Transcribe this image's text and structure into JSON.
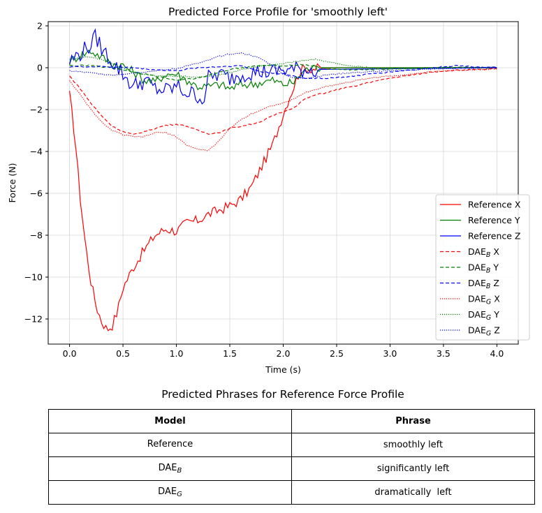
{
  "chart_data": {
    "type": "line",
    "title": "Predicted Force Profile for 'smoothly left'",
    "xlabel": "Time (s)",
    "ylabel": "Force (N)",
    "xlim": [
      -0.2,
      4.2
    ],
    "ylim": [
      -13.2,
      2.2
    ],
    "xticks": [
      0.0,
      0.5,
      1.0,
      1.5,
      2.0,
      2.5,
      3.0,
      3.5,
      4.0
    ],
    "xtick_labels": [
      "0.0",
      "0.5",
      "1.0",
      "1.5",
      "2.0",
      "2.5",
      "3.0",
      "3.5",
      "4.0"
    ],
    "yticks": [
      -12,
      -10,
      -8,
      -6,
      -4,
      -2,
      0,
      2
    ],
    "ytick_labels": [
      "−12",
      "−10",
      "−8",
      "−6",
      "−4",
      "−2",
      "0",
      "2"
    ],
    "grid": true,
    "legend_position": "lower-right",
    "series": [
      {
        "name": "Reference X",
        "color": "#ff0000",
        "style": "solid",
        "noise": 0.25,
        "points": [
          [
            0.0,
            -1.3
          ],
          [
            0.05,
            -3.3
          ],
          [
            0.1,
            -6.2
          ],
          [
            0.15,
            -8.5
          ],
          [
            0.2,
            -10.2
          ],
          [
            0.25,
            -11.4
          ],
          [
            0.3,
            -12.1
          ],
          [
            0.35,
            -12.5
          ],
          [
            0.4,
            -12.3
          ],
          [
            0.45,
            -11.6
          ],
          [
            0.5,
            -10.5
          ],
          [
            0.6,
            -9.5
          ],
          [
            0.7,
            -8.7
          ],
          [
            0.8,
            -8.0
          ],
          [
            0.9,
            -7.7
          ],
          [
            1.0,
            -7.8
          ],
          [
            1.1,
            -7.4
          ],
          [
            1.2,
            -7.3
          ],
          [
            1.3,
            -7.0
          ],
          [
            1.4,
            -6.8
          ],
          [
            1.5,
            -6.6
          ],
          [
            1.6,
            -6.3
          ],
          [
            1.7,
            -5.7
          ],
          [
            1.8,
            -4.7
          ],
          [
            1.9,
            -3.7
          ],
          [
            2.0,
            -2.2
          ],
          [
            2.05,
            -1.5
          ],
          [
            2.1,
            -0.9
          ],
          [
            2.15,
            -0.2
          ],
          [
            2.2,
            0.0
          ],
          [
            2.3,
            -0.05
          ],
          [
            2.5,
            0.0
          ],
          [
            4.0,
            0.0
          ]
        ]
      },
      {
        "name": "Reference Y",
        "color": "#008000",
        "style": "solid",
        "noise": 0.22,
        "points": [
          [
            0.0,
            0.3
          ],
          [
            0.1,
            0.6
          ],
          [
            0.2,
            0.8
          ],
          [
            0.3,
            0.5
          ],
          [
            0.4,
            0.2
          ],
          [
            0.5,
            0.1
          ],
          [
            0.6,
            -0.2
          ],
          [
            0.7,
            -0.6
          ],
          [
            0.8,
            -0.7
          ],
          [
            0.9,
            -0.3
          ],
          [
            1.0,
            -0.3
          ],
          [
            1.1,
            -0.6
          ],
          [
            1.2,
            -0.9
          ],
          [
            1.3,
            -0.9
          ],
          [
            1.4,
            -0.8
          ],
          [
            1.5,
            -1.0
          ],
          [
            1.6,
            -0.8
          ],
          [
            1.7,
            -0.8
          ],
          [
            1.8,
            -0.7
          ],
          [
            1.9,
            -0.6
          ],
          [
            2.0,
            -0.8
          ],
          [
            2.1,
            -0.7
          ],
          [
            2.2,
            -0.1
          ],
          [
            2.3,
            0.0
          ],
          [
            4.0,
            0.0
          ]
        ]
      },
      {
        "name": "Reference Z",
        "color": "#0000ff",
        "style": "solid",
        "noise": 0.42,
        "points": [
          [
            0.0,
            0.3
          ],
          [
            0.1,
            0.7
          ],
          [
            0.2,
            1.1
          ],
          [
            0.25,
            1.5
          ],
          [
            0.3,
            0.9
          ],
          [
            0.4,
            0.3
          ],
          [
            0.5,
            -0.3
          ],
          [
            0.6,
            -0.9
          ],
          [
            0.7,
            -0.6
          ],
          [
            0.8,
            -1.0
          ],
          [
            0.9,
            -1.1
          ],
          [
            1.0,
            -0.9
          ],
          [
            1.1,
            -1.2
          ],
          [
            1.2,
            -1.3
          ],
          [
            1.25,
            -1.6
          ],
          [
            1.3,
            -0.5
          ],
          [
            1.4,
            -0.3
          ],
          [
            1.5,
            -0.5
          ],
          [
            1.6,
            -0.3
          ],
          [
            1.7,
            -0.2
          ],
          [
            1.8,
            -0.2
          ],
          [
            1.9,
            -0.2
          ],
          [
            2.0,
            -0.1
          ],
          [
            4.0,
            0.0
          ]
        ]
      },
      {
        "name": "DAE_B X",
        "color": "#ff0000",
        "style": "dashed",
        "noise": 0.03,
        "points": [
          [
            0.0,
            -0.4
          ],
          [
            0.1,
            -1.0
          ],
          [
            0.2,
            -1.7
          ],
          [
            0.3,
            -2.3
          ],
          [
            0.4,
            -2.8
          ],
          [
            0.5,
            -3.05
          ],
          [
            0.6,
            -3.2
          ],
          [
            0.7,
            -3.05
          ],
          [
            0.8,
            -2.9
          ],
          [
            0.9,
            -2.75
          ],
          [
            1.0,
            -2.7
          ],
          [
            1.1,
            -2.8
          ],
          [
            1.2,
            -3.0
          ],
          [
            1.3,
            -3.15
          ],
          [
            1.4,
            -3.1
          ],
          [
            1.5,
            -2.9
          ],
          [
            1.6,
            -2.8
          ],
          [
            1.7,
            -2.7
          ],
          [
            1.8,
            -2.55
          ],
          [
            1.9,
            -2.3
          ],
          [
            2.0,
            -2.1
          ],
          [
            2.1,
            -1.9
          ],
          [
            2.2,
            -1.5
          ],
          [
            2.3,
            -1.3
          ],
          [
            2.4,
            -1.2
          ],
          [
            2.5,
            -1.05
          ],
          [
            2.6,
            -0.95
          ],
          [
            2.7,
            -0.85
          ],
          [
            2.8,
            -0.7
          ],
          [
            3.0,
            -0.5
          ],
          [
            3.2,
            -0.35
          ],
          [
            3.4,
            -0.2
          ],
          [
            3.6,
            -0.12
          ],
          [
            3.8,
            -0.1
          ],
          [
            4.0,
            -0.05
          ]
        ]
      },
      {
        "name": "DAE_B Y",
        "color": "#008000",
        "style": "dashed",
        "noise": 0.03,
        "points": [
          [
            0.0,
            0.1
          ],
          [
            0.2,
            0.1
          ],
          [
            0.4,
            0.0
          ],
          [
            0.6,
            -0.2
          ],
          [
            0.8,
            -0.4
          ],
          [
            1.0,
            -0.6
          ],
          [
            1.2,
            -0.5
          ],
          [
            1.4,
            -0.2
          ],
          [
            1.6,
            0.0
          ],
          [
            1.8,
            0.1
          ],
          [
            2.0,
            0.1
          ],
          [
            2.2,
            0.15
          ],
          [
            2.4,
            -0.05
          ],
          [
            2.6,
            -0.1
          ],
          [
            2.8,
            -0.1
          ],
          [
            3.0,
            -0.05
          ],
          [
            3.5,
            0.0
          ],
          [
            4.0,
            0.0
          ]
        ]
      },
      {
        "name": "DAE_B Z",
        "color": "#0000ff",
        "style": "dashed",
        "noise": 0.03,
        "points": [
          [
            0.0,
            0.05
          ],
          [
            0.3,
            0.05
          ],
          [
            0.6,
            0.0
          ],
          [
            0.8,
            -0.1
          ],
          [
            1.0,
            -0.15
          ],
          [
            1.2,
            0.0
          ],
          [
            1.4,
            0.05
          ],
          [
            1.6,
            0.1
          ],
          [
            1.8,
            -0.2
          ],
          [
            2.0,
            -0.3
          ],
          [
            2.2,
            -0.5
          ],
          [
            2.4,
            -0.5
          ],
          [
            2.6,
            -0.45
          ],
          [
            2.8,
            -0.3
          ],
          [
            3.0,
            -0.2
          ],
          [
            3.3,
            -0.05
          ],
          [
            3.6,
            0.1
          ],
          [
            3.8,
            0.05
          ],
          [
            4.0,
            0.0
          ]
        ]
      },
      {
        "name": "DAE_G X",
        "color": "#ff0000",
        "style": "dotted",
        "noise": 0.03,
        "points": [
          [
            0.0,
            -0.6
          ],
          [
            0.1,
            -1.3
          ],
          [
            0.2,
            -2.0
          ],
          [
            0.3,
            -2.6
          ],
          [
            0.4,
            -3.0
          ],
          [
            0.5,
            -3.2
          ],
          [
            0.6,
            -3.3
          ],
          [
            0.7,
            -3.3
          ],
          [
            0.8,
            -3.1
          ],
          [
            0.9,
            -3.1
          ],
          [
            1.0,
            -3.3
          ],
          [
            1.1,
            -3.7
          ],
          [
            1.2,
            -3.9
          ],
          [
            1.3,
            -3.95
          ],
          [
            1.4,
            -3.5
          ],
          [
            1.5,
            -2.9
          ],
          [
            1.6,
            -2.5
          ],
          [
            1.7,
            -2.2
          ],
          [
            1.8,
            -2.0
          ],
          [
            1.9,
            -1.8
          ],
          [
            2.0,
            -1.7
          ],
          [
            2.1,
            -1.5
          ],
          [
            2.2,
            -1.2
          ],
          [
            2.4,
            -0.9
          ],
          [
            2.6,
            -0.7
          ],
          [
            2.8,
            -0.5
          ],
          [
            3.0,
            -0.4
          ],
          [
            3.2,
            -0.3
          ],
          [
            3.5,
            -0.15
          ],
          [
            4.0,
            -0.05
          ]
        ]
      },
      {
        "name": "DAE_G Y",
        "color": "#008000",
        "style": "dotted",
        "noise": 0.03,
        "points": [
          [
            0.0,
            0.4
          ],
          [
            0.1,
            0.5
          ],
          [
            0.2,
            0.5
          ],
          [
            0.3,
            0.4
          ],
          [
            0.4,
            0.2
          ],
          [
            0.5,
            0.0
          ],
          [
            0.6,
            -0.2
          ],
          [
            0.7,
            -0.3
          ],
          [
            0.8,
            -0.4
          ],
          [
            1.0,
            -0.4
          ],
          [
            1.2,
            -0.45
          ],
          [
            1.4,
            -0.35
          ],
          [
            1.6,
            -0.1
          ],
          [
            1.8,
            0.1
          ],
          [
            2.0,
            0.2
          ],
          [
            2.2,
            0.35
          ],
          [
            2.3,
            0.4
          ],
          [
            2.4,
            0.3
          ],
          [
            2.6,
            0.1
          ],
          [
            2.8,
            0.0
          ],
          [
            3.0,
            -0.05
          ],
          [
            3.5,
            0.0
          ],
          [
            4.0,
            0.0
          ]
        ]
      },
      {
        "name": "DAE_G Z",
        "color": "#0000ff",
        "style": "dotted",
        "noise": 0.03,
        "points": [
          [
            0.0,
            -0.15
          ],
          [
            0.2,
            -0.25
          ],
          [
            0.4,
            -0.35
          ],
          [
            0.6,
            -0.25
          ],
          [
            0.8,
            -0.15
          ],
          [
            1.0,
            -0.05
          ],
          [
            1.1,
            0.1
          ],
          [
            1.2,
            0.2
          ],
          [
            1.3,
            0.35
          ],
          [
            1.4,
            0.55
          ],
          [
            1.5,
            0.65
          ],
          [
            1.6,
            0.7
          ],
          [
            1.7,
            0.6
          ],
          [
            1.8,
            0.4
          ],
          [
            1.9,
            0.1
          ],
          [
            2.0,
            -0.3
          ],
          [
            2.1,
            -0.5
          ],
          [
            2.2,
            -0.5
          ],
          [
            2.4,
            -0.35
          ],
          [
            2.6,
            -0.25
          ],
          [
            2.8,
            -0.2
          ],
          [
            3.0,
            -0.15
          ],
          [
            3.5,
            -0.05
          ],
          [
            4.0,
            0.0
          ]
        ]
      }
    ],
    "legend": [
      {
        "base": "Reference X",
        "sub": ""
      },
      {
        "base": "Reference Y",
        "sub": ""
      },
      {
        "base": "Reference Z",
        "sub": ""
      },
      {
        "base": "DAE",
        "sub": "B",
        "suffix": " X"
      },
      {
        "base": "DAE",
        "sub": "B",
        "suffix": " Y"
      },
      {
        "base": "DAE",
        "sub": "B",
        "suffix": " Z"
      },
      {
        "base": "DAE",
        "sub": "G",
        "suffix": " X"
      },
      {
        "base": "DAE",
        "sub": "G",
        "suffix": " Y"
      },
      {
        "base": "DAE",
        "sub": "G",
        "suffix": " Z"
      }
    ]
  },
  "table": {
    "title": "Predicted Phrases for Reference Force Profile",
    "headers": [
      "Model",
      "Phrase"
    ],
    "rows": [
      {
        "model": "Reference",
        "model_sub": "",
        "phrase": "smoothly left"
      },
      {
        "model": "DAE",
        "model_sub": "B",
        "phrase": "significantly left"
      },
      {
        "model": "DAE",
        "model_sub": "G",
        "phrase": "dramatically  left"
      }
    ]
  }
}
